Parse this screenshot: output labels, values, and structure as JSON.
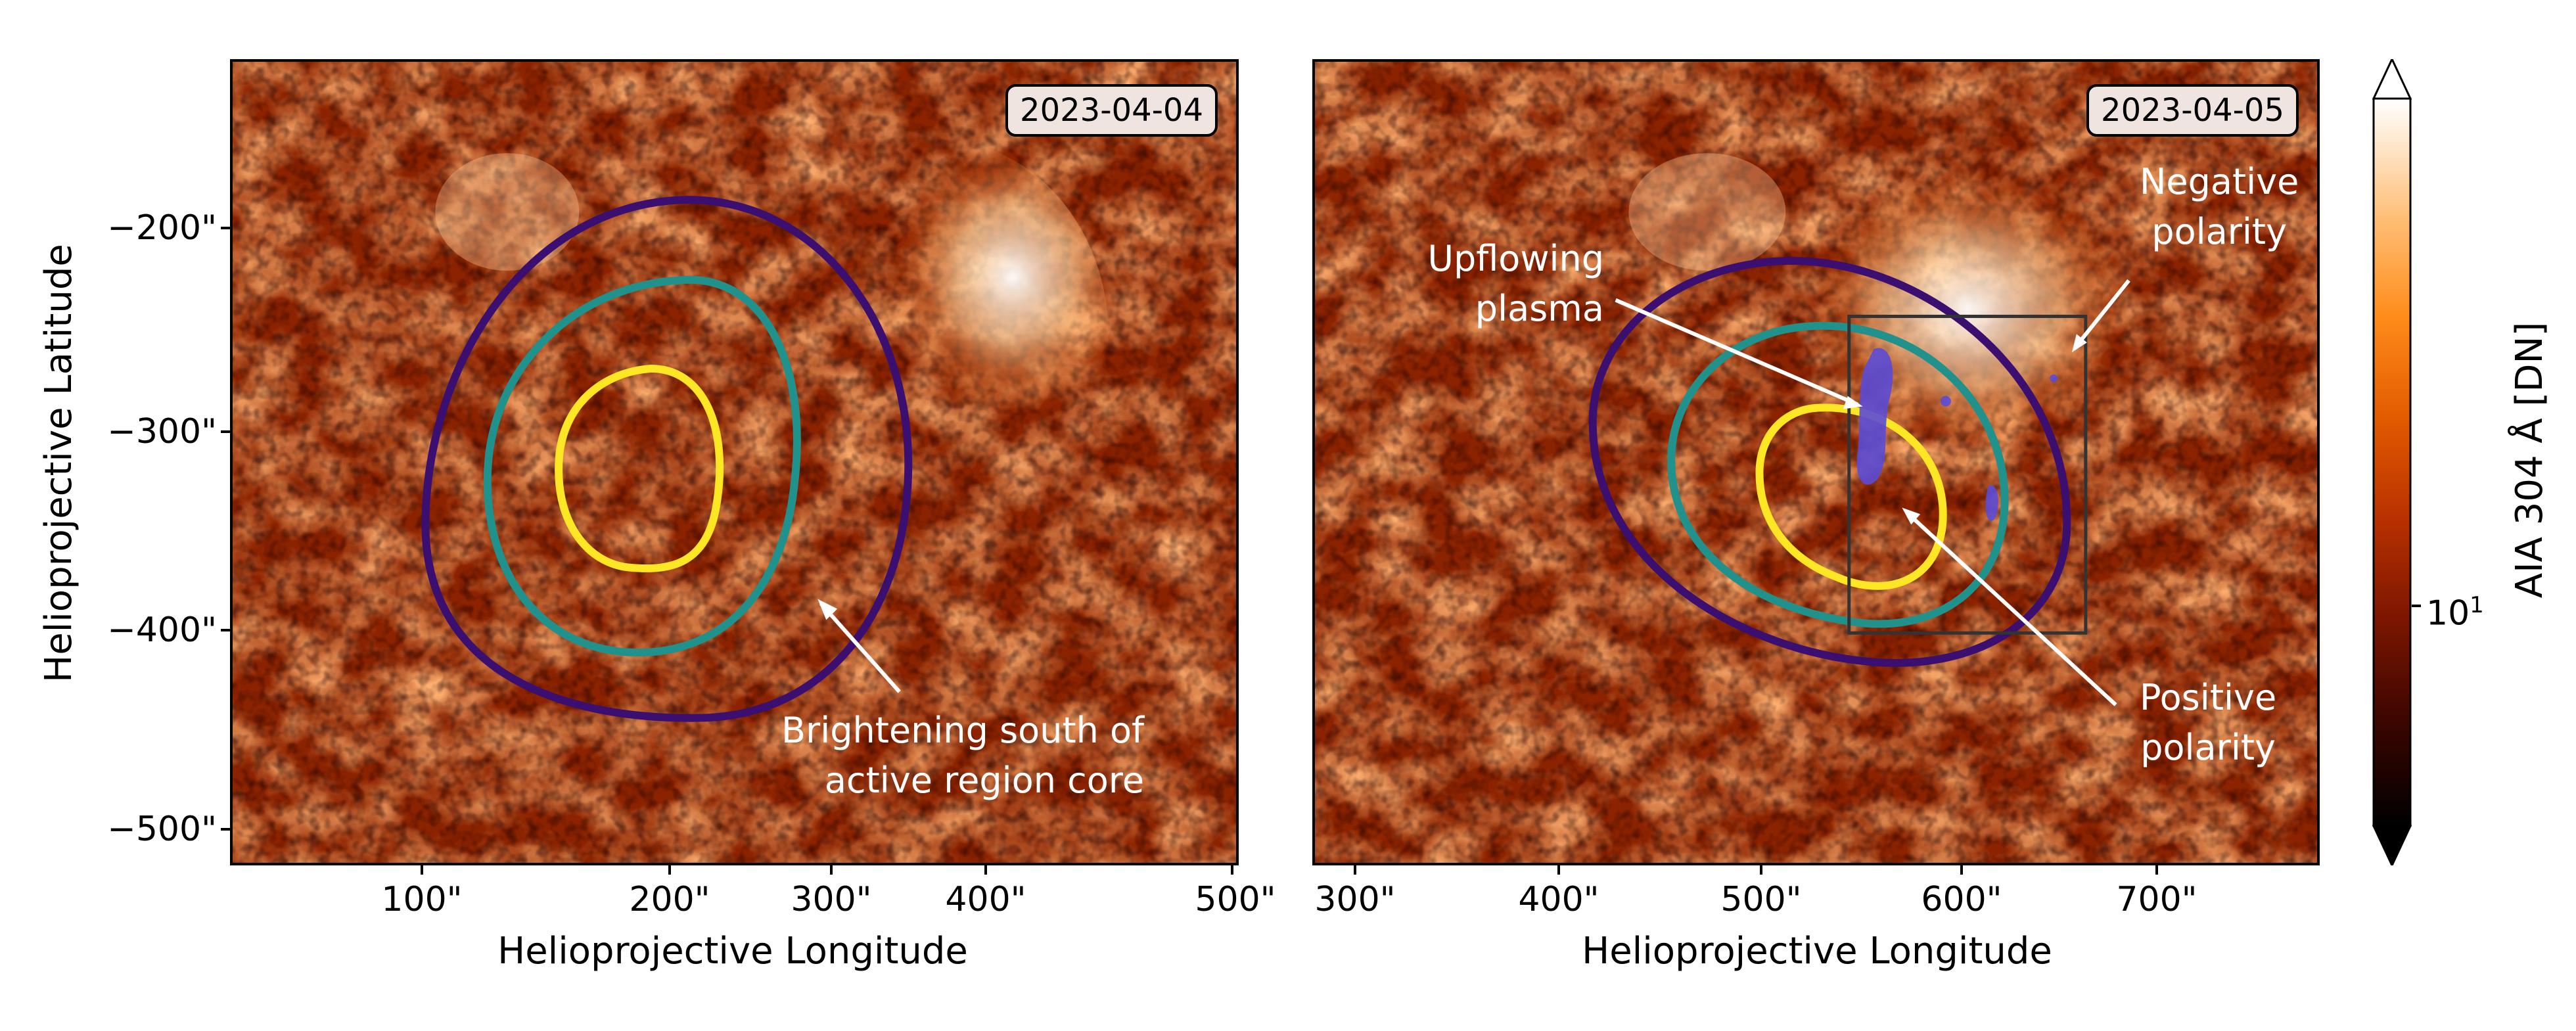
{
  "panels": [
    {
      "date": "2023-04-04",
      "annotation": "Brightening south of\nactive region core",
      "x_ticks": [
        "100\"",
        "200\"",
        "300\"",
        "400\"",
        "500\""
      ],
      "y_ticks": [
        "−200\"",
        "−300\"",
        "−400\"",
        "−500\""
      ],
      "x_label": "Helioprojective Longitude",
      "y_label": "Helioprojective Latitude"
    },
    {
      "date": "2023-04-05",
      "annotation_upflow": "Upflowing\nplasma",
      "annotation_negative": "Negative\npolarity",
      "annotation_positive": "Positive\npolarity",
      "x_ticks": [
        "300\"",
        "400\"",
        "500\"",
        "600\"",
        "700\""
      ],
      "x_label": "Helioprojective Longitude"
    }
  ],
  "colorbar": {
    "label": "AIA 304 Å [DN]",
    "tick": "10",
    "tick_exponent": "1",
    "colors": [
      "#000000",
      "#3a0500",
      "#7a1500",
      "#b83000",
      "#e35a00",
      "#ff8c1a",
      "#ffc07a",
      "#ffffff"
    ]
  },
  "contour_colors": {
    "outer": "#3b0f6f",
    "middle": "#21918c",
    "inner": "#fde725"
  },
  "overlay_colors": {
    "upflow": "#5b4bd6",
    "box": "#333333"
  }
}
